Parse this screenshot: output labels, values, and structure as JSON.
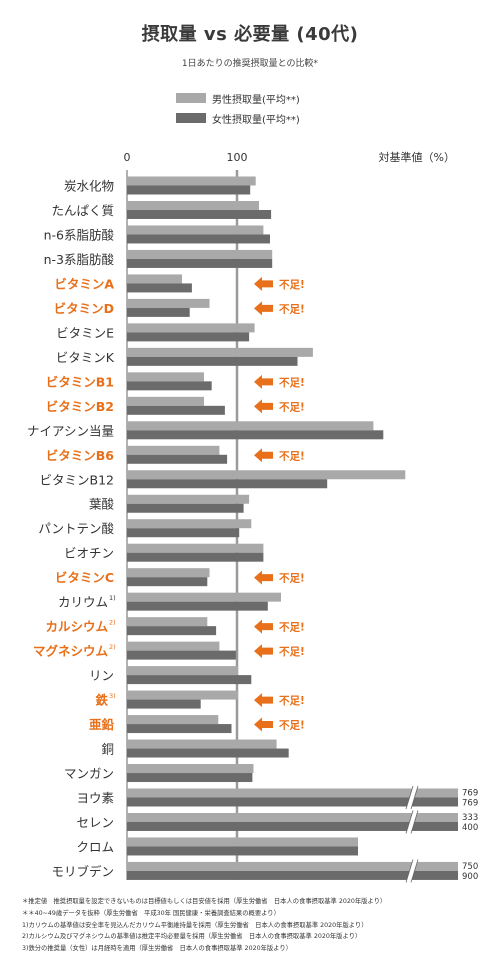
{
  "title": "摂取量 vs 必要量 (40代)",
  "subtitle": "1日あたりの推奨摂取量との比較*",
  "legend": {
    "male": "男性摂取量(平均**)",
    "female": "女性摂取量(平均**)"
  },
  "colors": {
    "male": "#a9a9a9",
    "female": "#6b6b6b",
    "shortage": "#e8701a",
    "reference_line": "#9a9a9a",
    "label_normal": "#333333"
  },
  "footnotes": [
    "＊推定値　推奨摂取量を設定できないものは目標値もしくは目安値を採用（厚生労働省　日本人の食事摂取基準 2020年版より）",
    "＊＊40~49歳データを抜粋（厚生労働省　平成30年 国民健康・栄養調査結果の概要より）",
    "1)カリウムの基準値は安全率を見込んだカリウム平衡維持量を採用（厚生労働省　日本人の食事摂取基準 2020年版より）",
    "2)カルシウム及びマグネシウムの基準値は推定平均必要量を採用（厚生労働省　日本人の食事摂取基準 2020年版より）",
    "3)鉄分の推奨量（女性）は月経時を適用（厚生労働省　日本人の食事摂取基準 2020年版より）"
  ],
  "chart_data": {
    "type": "bar",
    "orientation": "horizontal",
    "axis_title": "対基準値（%）",
    "x_ticks": [
      0,
      100
    ],
    "reference_value": 100,
    "shortage_label": "不足!",
    "series": [
      {
        "name": "男性摂取量(平均**)"
      },
      {
        "name": "女性摂取量(平均**)"
      }
    ],
    "categories": [
      {
        "label": "炭水化物",
        "male": 117,
        "female": 112
      },
      {
        "label": "たんぱく質",
        "male": 120,
        "female": 131
      },
      {
        "label": "n-6系脂肪酸",
        "male": 124,
        "female": 130
      },
      {
        "label": "n-3系脂肪酸",
        "male": 132,
        "female": 132
      },
      {
        "label": "ビタミンA",
        "male": 50,
        "female": 59,
        "shortage": true
      },
      {
        "label": "ビタミンD",
        "male": 75,
        "female": 57,
        "shortage": true
      },
      {
        "label": "ビタミンE",
        "male": 116,
        "female": 111
      },
      {
        "label": "ビタミンK",
        "male": 169,
        "female": 155
      },
      {
        "label": "ビタミンB1",
        "male": 70,
        "female": 77,
        "shortage": true
      },
      {
        "label": "ビタミンB2",
        "male": 70,
        "female": 89,
        "shortage": true
      },
      {
        "label": "ナイアシン当量",
        "male": 224,
        "female": 233
      },
      {
        "label": "ビタミンB6",
        "male": 84,
        "female": 91,
        "shortage": true
      },
      {
        "label": "ビタミンB12",
        "male": 253,
        "female": 182
      },
      {
        "label": "葉酸",
        "male": 111,
        "female": 106
      },
      {
        "label": "パントテン酸",
        "male": 113,
        "female": 102
      },
      {
        "label": "ビオチン",
        "male": 124,
        "female": 124
      },
      {
        "label": "ビタミンC",
        "male": 75,
        "female": 73,
        "shortage": true
      },
      {
        "label": "カリウム",
        "sup": "1)",
        "male": 140,
        "female": 128
      },
      {
        "label": "カルシウム",
        "sup": "2)",
        "male": 73,
        "female": 81,
        "shortage": true
      },
      {
        "label": "マグネシウム",
        "sup": "2)",
        "male": 84,
        "female": 99,
        "shortage": true
      },
      {
        "label": "リン",
        "male": 101,
        "female": 113
      },
      {
        "label": "鉄",
        "sup": "3)",
        "male": 101,
        "female": 67,
        "shortage": true
      },
      {
        "label": "亜鉛",
        "male": 83,
        "female": 95,
        "shortage": true
      },
      {
        "label": "銅",
        "male": 136,
        "female": 147
      },
      {
        "label": "マンガン",
        "male": 115,
        "female": 114
      },
      {
        "label": "ヨウ素",
        "male": 769,
        "female": 769,
        "broken": true,
        "male_label": "769",
        "female_label": "769"
      },
      {
        "label": "セレン",
        "male": 333,
        "female": 400,
        "broken": true,
        "male_label": "333",
        "female_label": "400"
      },
      {
        "label": "クロム",
        "male": 210,
        "female": 210
      },
      {
        "label": "モリブデン",
        "male": 750,
        "female": 900,
        "broken": true,
        "male_label": "750",
        "female_label": "900"
      }
    ]
  }
}
